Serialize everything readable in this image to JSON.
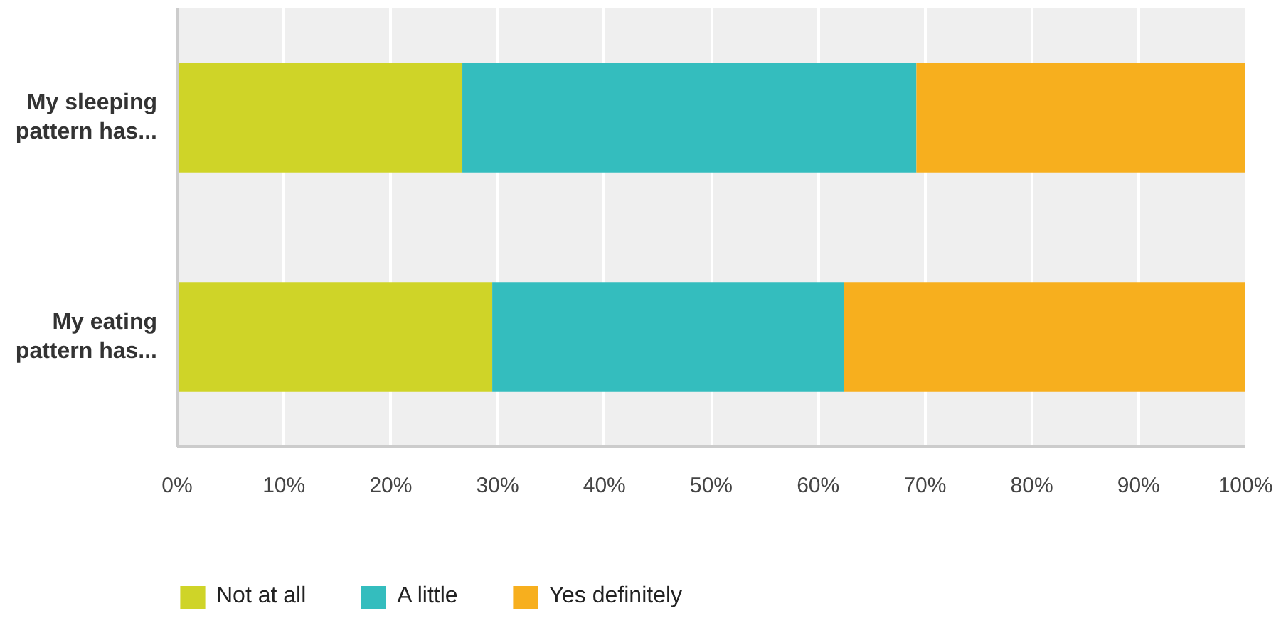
{
  "chart_data": {
    "type": "bar",
    "orientation": "horizontal",
    "stacked": true,
    "categories": [
      "My sleeping pattern has...",
      "My eating pattern has..."
    ],
    "series": [
      {
        "name": "Not at all",
        "color": "#cfd428",
        "values": [
          26.7,
          29.5
        ]
      },
      {
        "name": "A little",
        "color": "#34bdbe",
        "values": [
          42.5,
          32.9
        ]
      },
      {
        "name": "Yes definitely",
        "color": "#f7af1e",
        "values": [
          30.8,
          37.6
        ]
      }
    ],
    "xlim": [
      0,
      100
    ],
    "xticks": [
      {
        "value": 0,
        "label": "0%"
      },
      {
        "value": 10,
        "label": "10%"
      },
      {
        "value": 20,
        "label": "20%"
      },
      {
        "value": 30,
        "label": "30%"
      },
      {
        "value": 40,
        "label": "40%"
      },
      {
        "value": 50,
        "label": "50%"
      },
      {
        "value": 60,
        "label": "60%"
      },
      {
        "value": 70,
        "label": "70%"
      },
      {
        "value": 80,
        "label": "80%"
      },
      {
        "value": 90,
        "label": "90%"
      },
      {
        "value": 100,
        "label": "100%"
      }
    ],
    "grid": "x",
    "legend": "bottom"
  }
}
